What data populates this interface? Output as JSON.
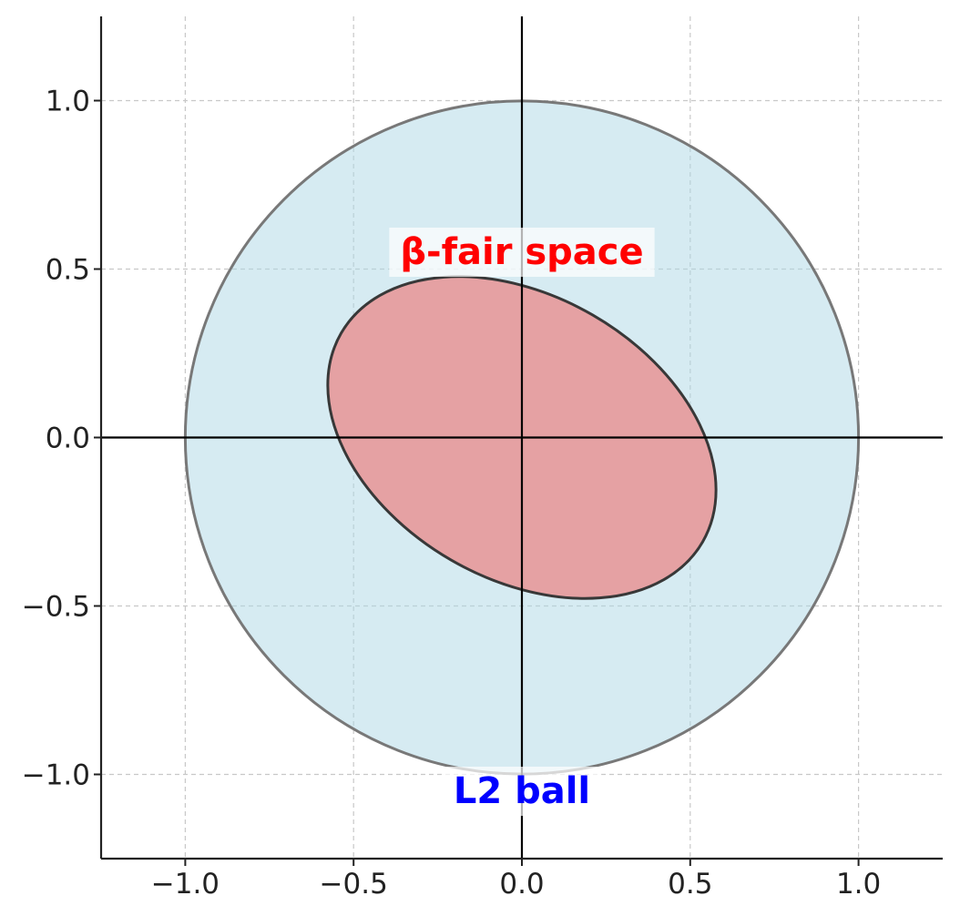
{
  "chart_data": {
    "type": "area",
    "title": "",
    "xlabel": "",
    "ylabel": "",
    "xlim": [
      -1.25,
      1.25
    ],
    "ylim": [
      -1.25,
      1.25
    ],
    "grid": true,
    "x_ticks": [
      -1.0,
      -0.5,
      0.0,
      0.5,
      1.0
    ],
    "y_ticks": [
      -1.0,
      -0.5,
      0.0,
      0.5,
      1.0
    ],
    "x_tick_labels": [
      "−1.0",
      "−0.5",
      "0.0",
      "0.5",
      "1.0"
    ],
    "y_tick_labels": [
      "−1.0",
      "−0.5",
      "0.0",
      "0.5",
      "1.0"
    ],
    "shapes": [
      {
        "kind": "circle",
        "label": "L2 ball",
        "center": [
          0,
          0
        ],
        "radius": 1.0,
        "fill_color": "#add8e6",
        "fill_opacity": 0.5,
        "edge_color": "#787878"
      },
      {
        "kind": "ellipse",
        "label": "β-fair space",
        "center": [
          0,
          0
        ],
        "semi_axis_major": 0.62,
        "semi_axis_minor": 0.42,
        "rotation_deg": -30,
        "fill_color": "#e5a1a3",
        "edge_color": "#383838"
      }
    ],
    "annotations": [
      {
        "text": "β-fair space",
        "x": 0.0,
        "y": 0.55,
        "color": "#ff0000"
      },
      {
        "text": "L2 ball",
        "x": 0.0,
        "y": -1.05,
        "color": "#0000ff"
      }
    ]
  }
}
